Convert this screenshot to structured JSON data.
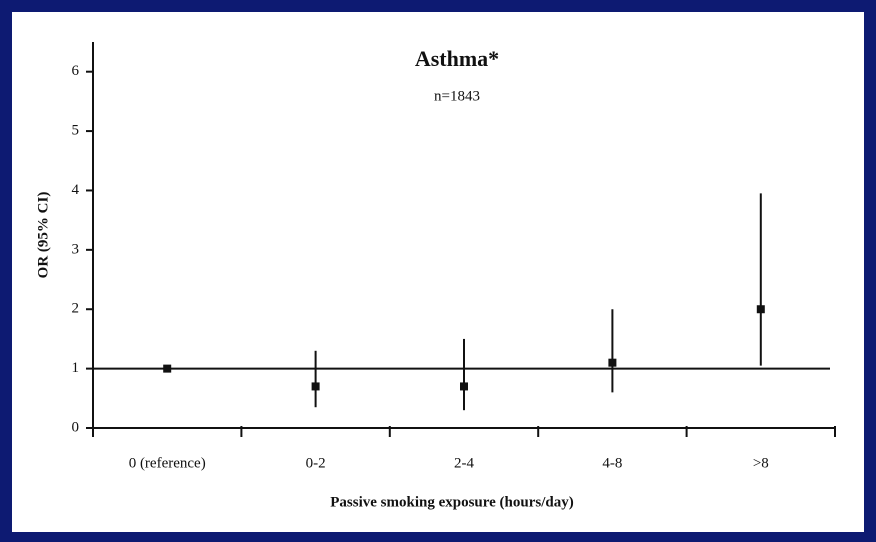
{
  "chart_data": {
    "type": "errorbar",
    "title": "Asthma*",
    "subtitle": "n=1843",
    "y_label": "OR (95% CI)",
    "x_label": "Passive smoking exposure (hours/day)",
    "categories": [
      "0 (reference)",
      "0-2",
      "2-4",
      "4-8",
      ">8"
    ],
    "values": [
      1,
      0.7,
      0.7,
      1.1,
      2.0
    ],
    "lower": [
      null,
      0.35,
      0.3,
      0.6,
      1.05
    ],
    "upper": [
      null,
      1.3,
      1.5,
      2.0,
      3.95
    ],
    "reference_line": 1,
    "color": "#111111",
    "ylim": [
      0,
      6.5
    ],
    "yticks": [
      0,
      1,
      2,
      3,
      4,
      5,
      6
    ]
  }
}
